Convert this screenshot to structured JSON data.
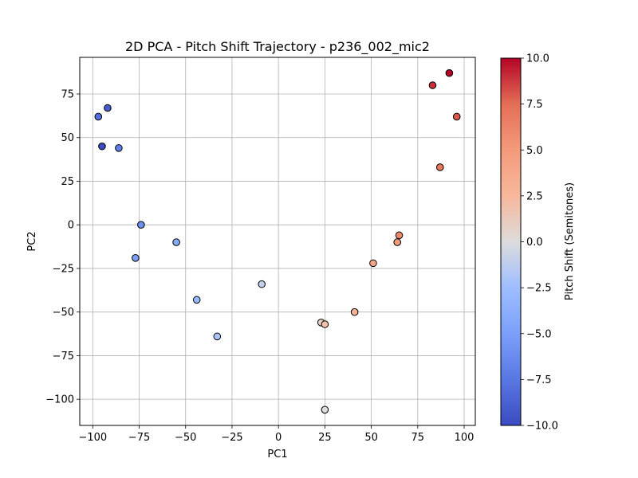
{
  "chart_data": {
    "type": "scatter",
    "title": "2D PCA - Pitch Shift Trajectory - p236_002_mic2",
    "xlabel": "PC1",
    "ylabel": "PC2",
    "xlim": [
      -107,
      106
    ],
    "ylim": [
      -115,
      96
    ],
    "xticks": [
      -100,
      -75,
      -50,
      -25,
      0,
      25,
      50,
      75,
      100
    ],
    "yticks": [
      -100,
      -75,
      -50,
      -25,
      0,
      25,
      50,
      75
    ],
    "grid": true,
    "colormap": "coolwarm",
    "colorbar": {
      "label": "Pitch Shift (Semitones)",
      "range": [
        -10,
        10
      ],
      "ticks": [
        -10.0,
        -7.5,
        -5.0,
        -2.5,
        0.0,
        2.5,
        5.0,
        7.5,
        10.0
      ],
      "tick_labels": [
        "−10.0",
        "−7.5",
        "−5.0",
        "−2.5",
        "0.0",
        "2.5",
        "5.0",
        "7.5",
        "10.0"
      ]
    },
    "points": [
      {
        "x": -97,
        "y": 62,
        "c": -8
      },
      {
        "x": -92,
        "y": 67,
        "c": -9
      },
      {
        "x": -95,
        "y": 45,
        "c": -10
      },
      {
        "x": -86,
        "y": 44,
        "c": -7
      },
      {
        "x": -74,
        "y": 0,
        "c": -6
      },
      {
        "x": -77,
        "y": -19,
        "c": -5
      },
      {
        "x": -55,
        "y": -10,
        "c": -4
      },
      {
        "x": -44,
        "y": -43,
        "c": -3
      },
      {
        "x": -33,
        "y": -64,
        "c": -2
      },
      {
        "x": -9,
        "y": -34,
        "c": -1
      },
      {
        "x": 25,
        "y": -106,
        "c": 0
      },
      {
        "x": 23,
        "y": -56,
        "c": 1
      },
      {
        "x": 25,
        "y": -57,
        "c": 2
      },
      {
        "x": 41,
        "y": -50,
        "c": 3
      },
      {
        "x": 51,
        "y": -22,
        "c": 4
      },
      {
        "x": 64,
        "y": -10,
        "c": 5
      },
      {
        "x": 65,
        "y": -6,
        "c": 6
      },
      {
        "x": 87,
        "y": 33,
        "c": 7
      },
      {
        "x": 96,
        "y": 62,
        "c": 8
      },
      {
        "x": 83,
        "y": 80,
        "c": 9
      },
      {
        "x": 92,
        "y": 87,
        "c": 10
      }
    ]
  }
}
